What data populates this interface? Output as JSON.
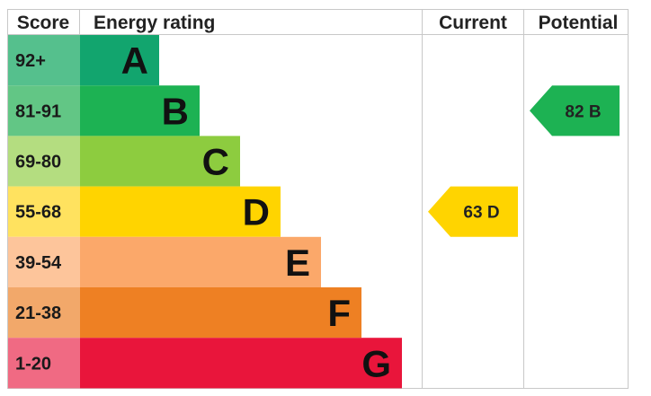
{
  "headers": {
    "score": "Score",
    "energy_rating": "Energy rating",
    "current": "Current",
    "potential": "Potential"
  },
  "chart_data": {
    "type": "bar",
    "bands": [
      {
        "score": "92+",
        "letter": "A",
        "color": "#12a56e",
        "score_color": "#55c08d"
      },
      {
        "score": "81-91",
        "letter": "B",
        "color": "#1db253",
        "score_color": "#62c685"
      },
      {
        "score": "69-80",
        "letter": "C",
        "color": "#8dcc3f",
        "score_color": "#b4dd80"
      },
      {
        "score": "55-68",
        "letter": "D",
        "color": "#ffd400",
        "score_color": "#ffe25f"
      },
      {
        "score": "39-54",
        "letter": "E",
        "color": "#fba86a",
        "score_color": "#fdc59b"
      },
      {
        "score": "21-38",
        "letter": "F",
        "color": "#ee8023",
        "score_color": "#f2a86a"
      },
      {
        "score": "1-20",
        "letter": "G",
        "color": "#e9153b",
        "score_color": "#f06a83"
      }
    ],
    "current": {
      "value": 63,
      "letter": "D",
      "text": "63  D",
      "color": "#ffd400"
    },
    "potential": {
      "value": 82,
      "letter": "B",
      "text": "82  B",
      "color": "#1db253"
    }
  }
}
